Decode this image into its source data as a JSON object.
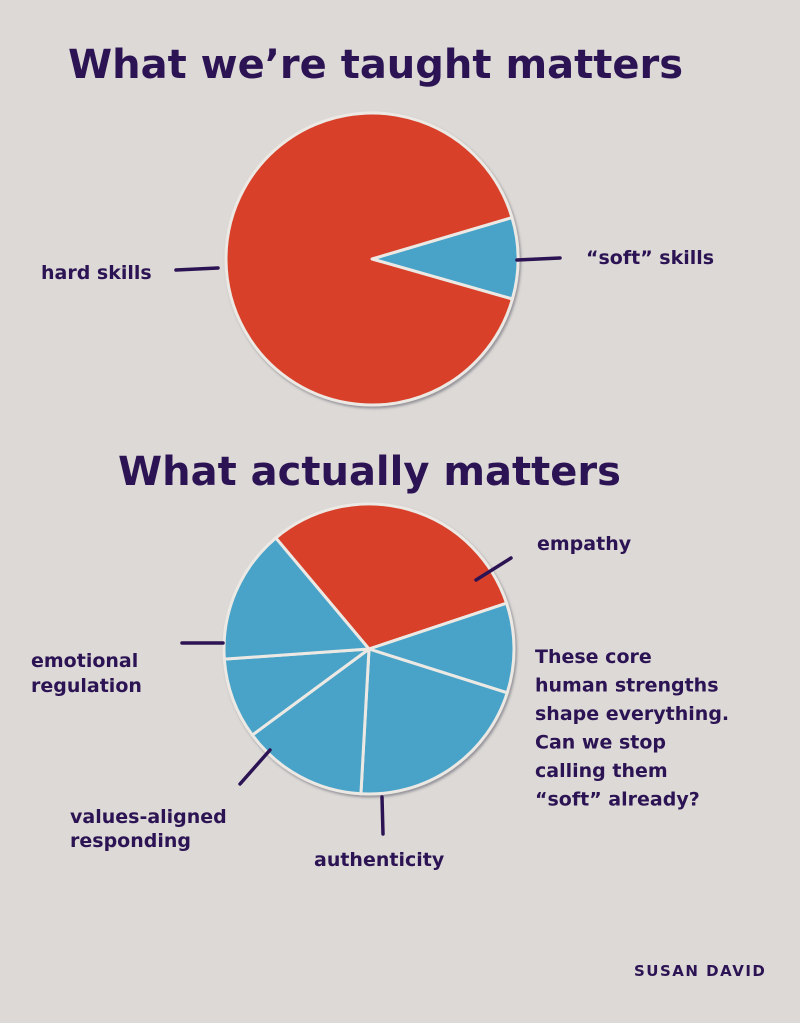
{
  "colors": {
    "background": "#dcd9d6",
    "text": "#2c1454",
    "hard": "#d8402a",
    "soft": "#4aa3c8",
    "gap": "#ece9e4",
    "shadow": "#5a5a66"
  },
  "chart_data": [
    {
      "type": "pie",
      "title": "What we’re taught matters",
      "slices": [
        {
          "label": "“soft” skills",
          "value": 9,
          "color": "soft"
        },
        {
          "label": "hard skills",
          "value": 91,
          "color": "hard"
        }
      ]
    },
    {
      "type": "pie",
      "title": "What actually matters",
      "slices": [
        {
          "label": "",
          "value": 31,
          "color": "hard"
        },
        {
          "label": "empathy",
          "value": 10,
          "color": "soft"
        },
        {
          "label": "",
          "value": 21,
          "color": "soft"
        },
        {
          "label": "authenticity",
          "value": 14,
          "color": "soft"
        },
        {
          "label": "values-aligned responding",
          "value": 9,
          "color": "soft"
        },
        {
          "label": "emotional regulation",
          "value": 15,
          "color": "soft"
        }
      ]
    }
  ],
  "note": {
    "lines": [
      "These core",
      "human strengths",
      "shape everything.",
      "Can we stop",
      "calling them",
      "“soft” already?"
    ]
  },
  "labels": {
    "hard_skills": "hard skills",
    "soft_skills": "“soft” skills",
    "empathy": "empathy",
    "emotional_regulation": [
      "emotional",
      "regulation"
    ],
    "values_aligned": [
      "values-aligned",
      "responding"
    ],
    "authenticity": "authenticity"
  },
  "author": "SUSAN DAVID"
}
